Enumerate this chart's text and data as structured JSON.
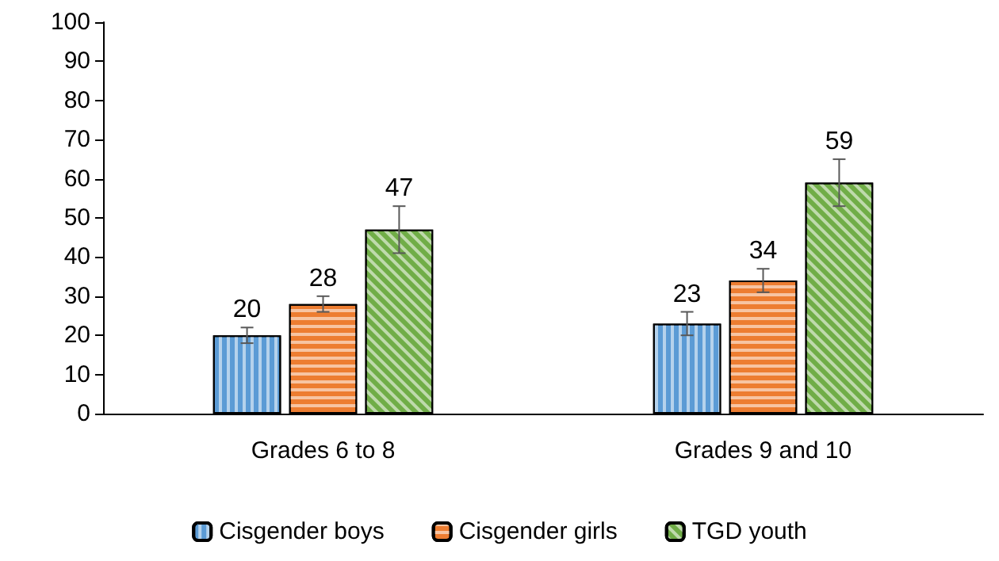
{
  "chart_data": {
    "type": "bar",
    "categories": [
      "Grades 6 to 8",
      "Grades 9 and 10"
    ],
    "series": [
      {
        "name": "Cisgender boys",
        "color": "#5b9bd5",
        "values": [
          20,
          23
        ],
        "errors": [
          2,
          3
        ]
      },
      {
        "name": "Cisgender girls",
        "color": "#ed7d31",
        "values": [
          28,
          34
        ],
        "errors": [
          2,
          3
        ]
      },
      {
        "name": "TGD youth",
        "color": "#70ad47",
        "values": [
          47,
          59
        ],
        "errors": [
          6,
          6
        ]
      }
    ],
    "ylim": [
      0,
      100
    ],
    "yticks": [
      0,
      10,
      20,
      30,
      40,
      50,
      60,
      70,
      80,
      90,
      100
    ],
    "grid": false,
    "legend": "bottom",
    "data_labels": true
  }
}
